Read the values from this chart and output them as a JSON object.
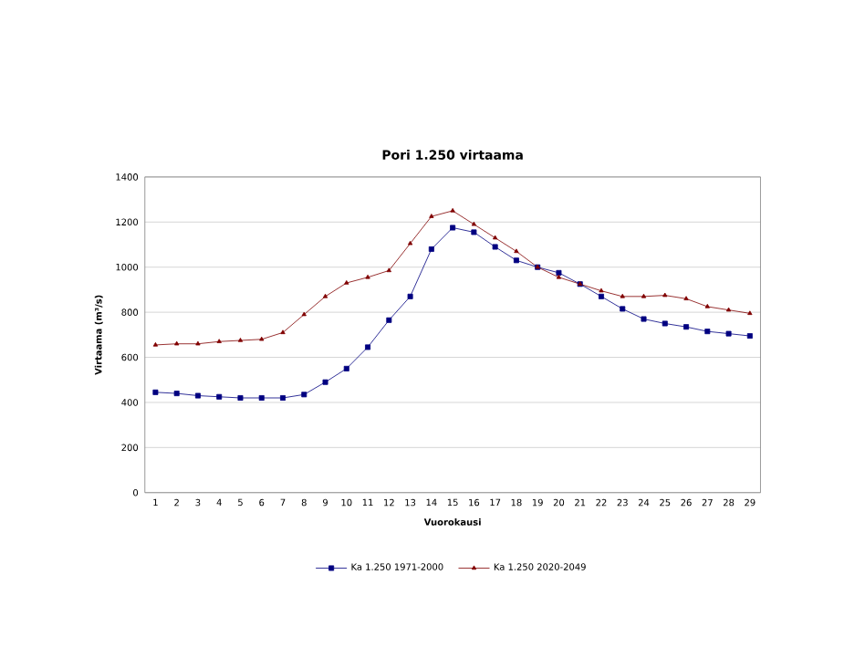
{
  "chart_data": {
    "type": "line",
    "title": "Pori 1.250 virtaama",
    "xlabel": "Vuorokausi",
    "ylabel": "Virtaama (m³/s)",
    "categories": [
      "1",
      "2",
      "3",
      "4",
      "5",
      "6",
      "7",
      "8",
      "9",
      "10",
      "11",
      "12",
      "13",
      "14",
      "15",
      "16",
      "17",
      "18",
      "19",
      "20",
      "21",
      "22",
      "23",
      "24",
      "25",
      "26",
      "27",
      "28",
      "29"
    ],
    "series": [
      {
        "name": "Ka 1.250 1971-2000",
        "color": "#000080",
        "marker": "square",
        "values": [
          445,
          440,
          430,
          425,
          420,
          420,
          420,
          435,
          490,
          550,
          645,
          765,
          870,
          1080,
          1175,
          1155,
          1090,
          1030,
          1000,
          975,
          925,
          870,
          815,
          770,
          750,
          735,
          715,
          705,
          695
        ]
      },
      {
        "name": "Ka 1.250 2020-2049",
        "color": "#800000",
        "marker": "triangle",
        "values": [
          655,
          660,
          660,
          670,
          675,
          680,
          710,
          790,
          870,
          930,
          955,
          985,
          1105,
          1225,
          1250,
          1190,
          1130,
          1070,
          1000,
          955,
          925,
          895,
          870,
          870,
          875,
          860,
          825,
          810,
          795
        ]
      }
    ],
    "ylim": [
      0,
      1400
    ],
    "yticks": [
      0,
      200,
      400,
      600,
      800,
      1000,
      1200,
      1400
    ],
    "grid": "y",
    "legend": "bottom"
  }
}
